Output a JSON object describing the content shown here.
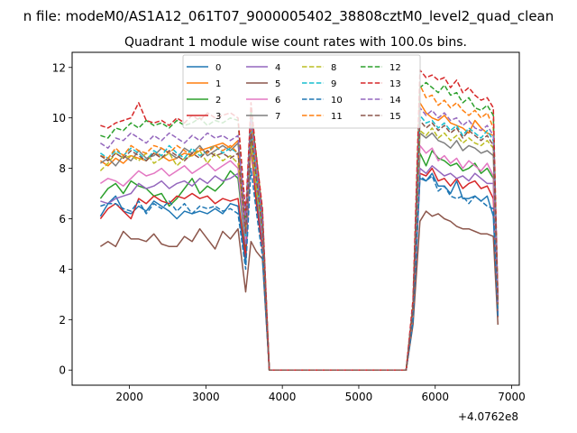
{
  "figure": {
    "suptitle": "n file: modeM0/AS1A12_061T07_9000005402_38808cztM0_level2_quad_clean"
  },
  "chart_data": {
    "type": "line",
    "title": "Quadrant 1 module wise count rates with 100.0s bins.",
    "xlabel": "",
    "ylabel": "",
    "x_offset_label": "+4.0762e8",
    "xlim": [
      1250,
      7100
    ],
    "ylim": [
      -0.6,
      12.6
    ],
    "xticks": [
      2000,
      3000,
      4000,
      5000,
      6000,
      7000
    ],
    "yticks": [
      0,
      2,
      4,
      6,
      8,
      10,
      12
    ],
    "grid": false,
    "legend": {
      "placement": "top-center",
      "columns": 4
    },
    "x": [
      1620,
      1720,
      1820,
      1920,
      2020,
      2120,
      2220,
      2320,
      2420,
      2520,
      2620,
      2720,
      2820,
      2920,
      3020,
      3120,
      3220,
      3320,
      3420,
      3520,
      3590,
      3660,
      3740,
      3830,
      5620,
      5710,
      5800,
      5880,
      5960,
      6040,
      6120,
      6200,
      6280,
      6360,
      6440,
      6520,
      6600,
      6680,
      6760,
      6820
    ],
    "series": [
      {
        "name": "0",
        "color": "#1f77b4",
        "dash": "solid",
        "values": [
          6.1,
          6.6,
          6.9,
          6.3,
          6.2,
          6.5,
          6.3,
          6.7,
          6.5,
          6.3,
          6.0,
          6.3,
          6.2,
          6.3,
          6.2,
          6.4,
          6.2,
          6.6,
          6.5,
          4.2,
          9.3,
          6.8,
          5.0,
          0.0,
          0.0,
          2.0,
          7.6,
          7.5,
          7.8,
          7.3,
          7.3,
          7.0,
          7.5,
          6.8,
          6.8,
          6.9,
          6.7,
          6.9,
          6.1,
          2.1
        ]
      },
      {
        "name": "1",
        "color": "#ff7f0e",
        "dash": "solid",
        "values": [
          8.3,
          8.1,
          8.4,
          8.2,
          8.5,
          8.4,
          8.3,
          8.6,
          8.5,
          8.3,
          8.4,
          8.6,
          8.5,
          8.7,
          8.8,
          8.9,
          9.0,
          8.8,
          9.1,
          5.5,
          10.1,
          8.5,
          6.2,
          0.0,
          0.0,
          2.5,
          10.6,
          10.2,
          10.0,
          9.9,
          10.1,
          9.8,
          9.7,
          9.6,
          9.4,
          9.9,
          9.6,
          9.4,
          9.3,
          2.6
        ]
      },
      {
        "name": "2",
        "color": "#2ca02c",
        "dash": "solid",
        "values": [
          6.8,
          7.2,
          7.4,
          7.0,
          7.5,
          7.3,
          7.2,
          6.9,
          7.0,
          6.5,
          6.8,
          7.2,
          7.6,
          7.0,
          7.3,
          7.1,
          7.4,
          7.9,
          7.6,
          4.8,
          9.5,
          7.0,
          5.4,
          0.0,
          0.0,
          2.1,
          8.6,
          8.1,
          8.7,
          8.4,
          8.3,
          8.1,
          8.2,
          7.9,
          8.0,
          8.2,
          7.8,
          8.0,
          7.6,
          2.3
        ]
      },
      {
        "name": "3",
        "color": "#d62728",
        "dash": "solid",
        "values": [
          6.0,
          6.4,
          6.6,
          6.3,
          6.0,
          6.8,
          6.6,
          6.9,
          6.7,
          6.6,
          6.9,
          6.8,
          7.0,
          6.8,
          6.9,
          6.6,
          6.8,
          6.7,
          6.8,
          4.5,
          8.9,
          6.6,
          4.8,
          0.0,
          0.0,
          2.0,
          7.8,
          7.7,
          8.0,
          7.5,
          7.6,
          7.3,
          7.6,
          7.2,
          7.4,
          7.5,
          7.2,
          7.3,
          6.8,
          2.1
        ]
      },
      {
        "name": "4",
        "color": "#9467bd",
        "dash": "solid",
        "values": [
          6.7,
          6.6,
          6.8,
          6.9,
          7.0,
          7.4,
          7.2,
          7.3,
          7.5,
          7.2,
          7.4,
          7.5,
          7.3,
          7.6,
          7.4,
          7.7,
          7.5,
          7.6,
          7.8,
          5.0,
          9.0,
          7.2,
          5.2,
          0.0,
          0.0,
          2.1,
          8.0,
          7.8,
          8.1,
          7.9,
          7.7,
          7.8,
          7.6,
          7.7,
          7.5,
          7.8,
          7.6,
          7.4,
          7.4,
          2.2
        ]
      },
      {
        "name": "5",
        "color": "#8c564b",
        "dash": "solid",
        "values": [
          4.9,
          5.1,
          4.9,
          5.5,
          5.2,
          5.2,
          5.1,
          5.4,
          5.0,
          4.9,
          4.9,
          5.3,
          5.1,
          5.6,
          5.2,
          4.8,
          5.5,
          5.2,
          5.6,
          3.1,
          5.1,
          4.7,
          4.4,
          0.0,
          0.0,
          1.8,
          5.9,
          6.3,
          6.1,
          6.2,
          6.0,
          5.9,
          5.7,
          5.6,
          5.6,
          5.5,
          5.4,
          5.4,
          5.3,
          1.8
        ]
      },
      {
        "name": "6",
        "color": "#e377c2",
        "dash": "solid",
        "values": [
          7.4,
          7.6,
          7.5,
          7.3,
          7.6,
          7.9,
          7.7,
          7.8,
          8.0,
          7.7,
          7.9,
          8.1,
          7.8,
          8.0,
          8.2,
          7.9,
          8.1,
          8.3,
          8.0,
          5.2,
          9.6,
          7.6,
          5.4,
          0.0,
          0.0,
          2.2,
          8.9,
          8.6,
          8.8,
          8.3,
          8.5,
          8.2,
          8.4,
          8.0,
          8.3,
          8.1,
          7.9,
          8.2,
          7.7,
          2.4
        ]
      },
      {
        "name": "7",
        "color": "#7f7f7f",
        "dash": "solid",
        "values": [
          8.2,
          8.4,
          8.1,
          8.5,
          8.3,
          8.7,
          8.4,
          8.5,
          8.8,
          8.6,
          8.4,
          8.8,
          8.6,
          8.9,
          8.5,
          8.7,
          8.9,
          8.7,
          9.0,
          5.8,
          9.8,
          8.3,
          6.0,
          0.0,
          0.0,
          2.3,
          9.4,
          9.2,
          9.4,
          9.1,
          9.0,
          8.8,
          9.1,
          8.7,
          8.9,
          8.8,
          8.6,
          8.7,
          8.5,
          2.4
        ]
      },
      {
        "name": "8",
        "color": "#bcbd22",
        "dash": "dashed",
        "values": [
          7.9,
          8.2,
          8.6,
          8.4,
          8.5,
          8.3,
          8.6,
          8.2,
          8.4,
          8.6,
          8.1,
          8.4,
          8.5,
          8.7,
          8.2,
          8.6,
          8.3,
          8.5,
          8.2,
          5.5,
          9.0,
          7.2,
          5.5,
          0.0,
          0.0,
          2.4,
          9.5,
          9.3,
          9.6,
          9.2,
          9.4,
          9.1,
          9.3,
          9.0,
          9.2,
          9.0,
          8.9,
          9.1,
          8.8,
          2.5
        ]
      },
      {
        "name": "9",
        "color": "#17becf",
        "dash": "dashed",
        "values": [
          8.6,
          8.4,
          8.7,
          8.5,
          8.8,
          8.6,
          8.3,
          8.7,
          8.5,
          8.9,
          8.6,
          8.4,
          8.8,
          8.5,
          8.7,
          8.9,
          8.6,
          8.8,
          8.6,
          5.3,
          9.7,
          7.8,
          5.6,
          0.0,
          0.0,
          2.4,
          10.1,
          9.8,
          9.9,
          9.6,
          9.8,
          9.5,
          9.7,
          9.3,
          9.6,
          9.4,
          9.2,
          9.5,
          9.1,
          2.6
        ]
      },
      {
        "name": "10",
        "color": "#1f77b4",
        "dash": "dashed",
        "values": [
          6.5,
          6.6,
          6.6,
          6.4,
          6.3,
          6.7,
          6.2,
          6.6,
          6.4,
          6.7,
          6.3,
          6.6,
          6.2,
          6.5,
          6.4,
          6.5,
          6.3,
          6.4,
          6.2,
          4.0,
          8.0,
          6.3,
          4.5,
          0.0,
          0.0,
          1.9,
          7.7,
          7.5,
          7.7,
          7.1,
          7.3,
          6.9,
          6.8,
          6.9,
          6.6,
          6.9,
          6.7,
          6.5,
          6.4,
          2.1
        ]
      },
      {
        "name": "11",
        "color": "#ff7f0e",
        "dash": "dashed",
        "values": [
          8.5,
          8.4,
          8.8,
          8.5,
          8.9,
          8.7,
          8.6,
          8.9,
          8.8,
          8.6,
          8.9,
          8.7,
          8.5,
          8.8,
          8.6,
          8.9,
          8.7,
          8.9,
          8.6,
          5.6,
          9.8,
          8.0,
          5.8,
          0.0,
          0.0,
          2.5,
          11.3,
          10.8,
          10.9,
          10.5,
          10.7,
          10.4,
          10.6,
          10.3,
          10.1,
          10.3,
          10.0,
          10.2,
          9.6,
          2.7
        ]
      },
      {
        "name": "12",
        "color": "#2ca02c",
        "dash": "dashed",
        "values": [
          9.3,
          9.2,
          9.6,
          9.5,
          9.8,
          9.6,
          9.9,
          9.7,
          9.8,
          9.6,
          9.9,
          9.7,
          9.8,
          10.0,
          9.7,
          9.9,
          9.8,
          10.0,
          9.9,
          6.0,
          10.3,
          8.4,
          6.2,
          0.0,
          0.0,
          2.6,
          11.2,
          11.4,
          11.2,
          11.0,
          11.3,
          10.9,
          11.0,
          10.6,
          10.8,
          10.4,
          10.3,
          10.5,
          10.1,
          2.8
        ]
      },
      {
        "name": "13",
        "color": "#d62728",
        "dash": "dashed",
        "values": [
          9.7,
          9.6,
          9.8,
          9.9,
          10.0,
          10.6,
          9.9,
          9.8,
          9.9,
          9.7,
          10.0,
          9.8,
          10.1,
          9.9,
          10.2,
          10.0,
          10.1,
          10.2,
          10.0,
          6.2,
          10.6,
          8.5,
          6.4,
          0.0,
          0.0,
          2.8,
          11.9,
          11.6,
          11.7,
          11.5,
          11.6,
          11.2,
          11.5,
          11.0,
          11.2,
          10.9,
          10.7,
          10.8,
          10.4,
          2.9
        ]
      },
      {
        "name": "14",
        "color": "#9467bd",
        "dash": "dashed",
        "values": [
          9.0,
          8.8,
          9.2,
          9.1,
          9.4,
          9.2,
          9.0,
          9.3,
          9.1,
          9.4,
          9.2,
          9.0,
          9.3,
          9.1,
          9.4,
          9.2,
          9.3,
          9.1,
          9.3,
          5.8,
          10.0,
          8.2,
          6.0,
          0.0,
          0.0,
          2.5,
          10.4,
          10.1,
          10.3,
          10.0,
          10.2,
          9.9,
          10.0,
          9.7,
          9.9,
          9.6,
          9.5,
          9.7,
          9.3,
          2.7
        ]
      },
      {
        "name": "15",
        "color": "#8c564b",
        "dash": "dashed",
        "values": [
          8.5,
          8.3,
          8.6,
          8.4,
          8.7,
          8.5,
          8.3,
          8.6,
          8.4,
          8.7,
          8.5,
          8.3,
          8.6,
          8.4,
          8.7,
          8.5,
          8.6,
          8.4,
          8.6,
          5.4,
          9.4,
          7.6,
          5.6,
          0.0,
          0.0,
          2.4,
          9.9,
          9.6,
          9.8,
          9.5,
          9.7,
          9.4,
          9.6,
          9.2,
          9.5,
          9.3,
          9.1,
          9.3,
          8.9,
          2.6
        ]
      }
    ]
  }
}
